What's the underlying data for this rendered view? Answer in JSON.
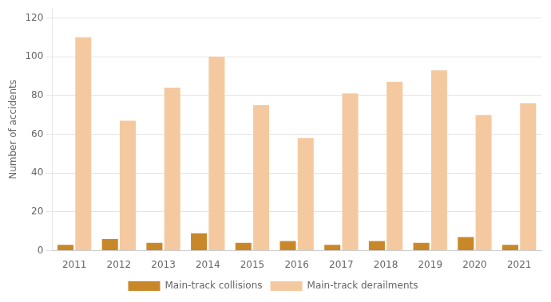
{
  "chart_data": {
    "type": "bar",
    "categories": [
      "2011",
      "2012",
      "2013",
      "2014",
      "2015",
      "2016",
      "2017",
      "2018",
      "2019",
      "2020",
      "2021"
    ],
    "series": [
      {
        "name": "Main-track collisions",
        "color": "#c8882a",
        "values": [
          3,
          6,
          4,
          9,
          4,
          5,
          3,
          5,
          4,
          7,
          3
        ]
      },
      {
        "name": "Main-track derailments",
        "color": "#f5c9a0",
        "values": [
          110,
          67,
          84,
          100,
          75,
          58,
          81,
          87,
          93,
          70,
          76
        ]
      }
    ],
    "ylabel": "Number of accidents",
    "ylim": [
      0,
      125
    ],
    "yticks": [
      0,
      20,
      40,
      60,
      80,
      100,
      120
    ],
    "grid": true,
    "legend": "bottom"
  }
}
